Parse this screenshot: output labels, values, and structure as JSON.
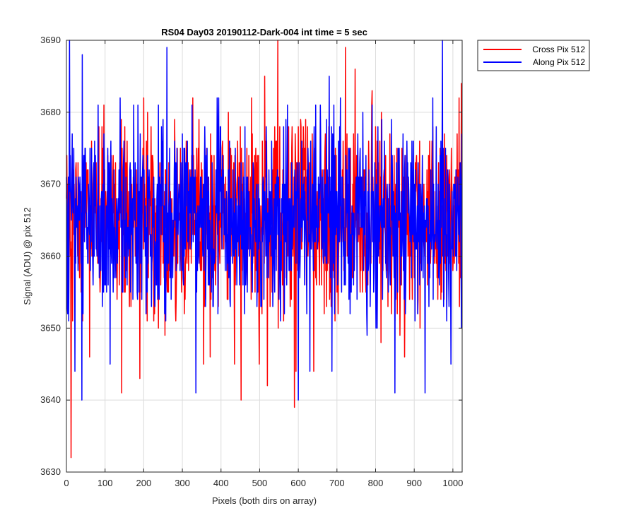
{
  "chart_data": {
    "type": "line",
    "title": "RS04 Day03 20190112-Dark-004 int time = 5 sec",
    "xlabel": "Pixels (both dirs on array)",
    "ylabel": "Signal (ADU) @ pix 512",
    "xlim": [
      0,
      1024
    ],
    "ylim": [
      3630,
      3690
    ],
    "xticks": [
      0,
      100,
      200,
      300,
      400,
      500,
      600,
      700,
      800,
      900,
      1000
    ],
    "yticks": [
      3630,
      3640,
      3650,
      3660,
      3670,
      3680,
      3690
    ],
    "grid": true,
    "legend_position": "outside-top-right",
    "noise": {
      "mean": 3665,
      "spread": 6.5,
      "min": 3632,
      "max": 3690,
      "n_points": 1024
    },
    "series": [
      {
        "name": "Cross Pix 512",
        "color": "#ff0000",
        "extremes": [
          {
            "x": 12,
            "y": 3632
          },
          {
            "x": 60,
            "y": 3646
          },
          {
            "x": 143,
            "y": 3641
          },
          {
            "x": 190,
            "y": 3643
          },
          {
            "x": 255,
            "y": 3649
          },
          {
            "x": 355,
            "y": 3645
          },
          {
            "x": 435,
            "y": 3645
          },
          {
            "x": 520,
            "y": 3642
          },
          {
            "x": 547,
            "y": 3690
          },
          {
            "x": 590,
            "y": 3639
          },
          {
            "x": 640,
            "y": 3644
          },
          {
            "x": 722,
            "y": 3689
          },
          {
            "x": 815,
            "y": 3680
          },
          {
            "x": 875,
            "y": 3646
          },
          {
            "x": 1022,
            "y": 3684
          }
        ]
      },
      {
        "name": "Along Pix 512",
        "color": "#0000ff",
        "extremes": [
          {
            "x": 8,
            "y": 3690
          },
          {
            "x": 22,
            "y": 3644
          },
          {
            "x": 40,
            "y": 3640
          },
          {
            "x": 41,
            "y": 3688
          },
          {
            "x": 260,
            "y": 3689
          },
          {
            "x": 335,
            "y": 3641
          },
          {
            "x": 600,
            "y": 3640
          },
          {
            "x": 630,
            "y": 3644
          },
          {
            "x": 680,
            "y": 3685
          },
          {
            "x": 850,
            "y": 3641
          },
          {
            "x": 928,
            "y": 3641
          },
          {
            "x": 973,
            "y": 3690
          }
        ]
      }
    ]
  }
}
